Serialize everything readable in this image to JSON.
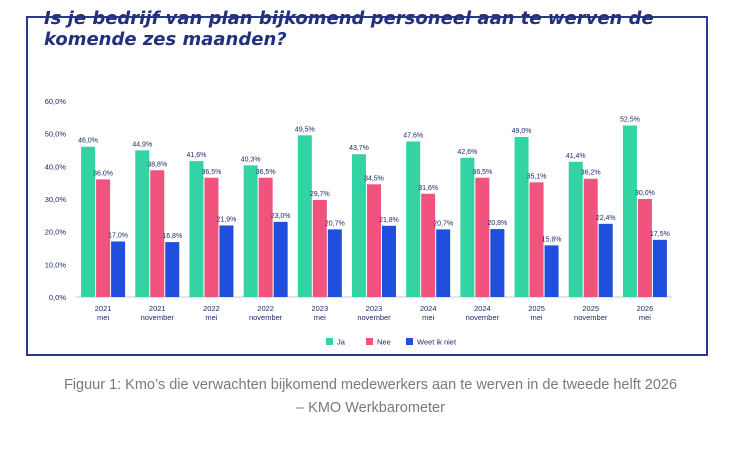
{
  "chart_data": {
    "type": "bar",
    "title": "Is je bedrijf van plan bijkomend personeel aan te werven de komende zes maanden?",
    "categories": [
      {
        "year": "2021",
        "period": "mei"
      },
      {
        "year": "2021",
        "period": "november"
      },
      {
        "year": "2022",
        "period": "mei"
      },
      {
        "year": "2022",
        "period": "november"
      },
      {
        "year": "2023",
        "period": "mei"
      },
      {
        "year": "2023",
        "period": "november"
      },
      {
        "year": "2024",
        "period": "mei"
      },
      {
        "year": "2024",
        "period": "november"
      },
      {
        "year": "2025",
        "period": "mei"
      },
      {
        "year": "2025",
        "period": "november"
      },
      {
        "year": "2026",
        "period": "mei"
      }
    ],
    "series": [
      {
        "name": "Ja",
        "color": "#33d4a4",
        "values": [
          46.0,
          44.9,
          41.6,
          40.3,
          49.5,
          43.7,
          47.6,
          42.6,
          49.0,
          41.4,
          52.5
        ],
        "labels": [
          "46,0%",
          "44,9%",
          "41,6%",
          "40,3%",
          "49,5%",
          "43,7%",
          "47,6%",
          "42,6%",
          "49,0%",
          "41,4%",
          "52,5%"
        ]
      },
      {
        "name": "Nee",
        "color": "#f0537e",
        "values": [
          36.0,
          38.8,
          36.5,
          36.5,
          29.7,
          34.5,
          31.6,
          36.5,
          35.1,
          36.2,
          30.0
        ],
        "labels": [
          "36,0%",
          "38,8%",
          "36,5%",
          "36,5%",
          "29,7%",
          "34,5%",
          "31,6%",
          "36,5%",
          "35,1%",
          "36,2%",
          "30,0%"
        ]
      },
      {
        "name": "Weet ik niet",
        "color": "#1f4fdc",
        "values": [
          17.0,
          16.8,
          21.9,
          23.0,
          20.7,
          21.8,
          20.7,
          20.8,
          15.8,
          22.4,
          17.5
        ],
        "labels": [
          "17,0%",
          "16,8%",
          "21,9%",
          "23,0%",
          "20,7%",
          "21,8%",
          "20,7%",
          "20,8%",
          "15,8%",
          "22,4%",
          "17,5%"
        ]
      }
    ],
    "yticks": [
      "0,0%",
      "10,0%",
      "20,0%",
      "30,0%",
      "40,0%",
      "50,0%",
      "60,0%"
    ],
    "ylim": [
      0,
      60
    ],
    "xlabel": "",
    "ylabel": "",
    "grid": false,
    "legend": "bottom-center"
  },
  "caption": {
    "line1": "Figuur 1: Kmo’s die verwachten bijkomend medewerkers aan te werven in de tweede helft 2026",
    "line2": "– KMO Werkbarometer"
  }
}
